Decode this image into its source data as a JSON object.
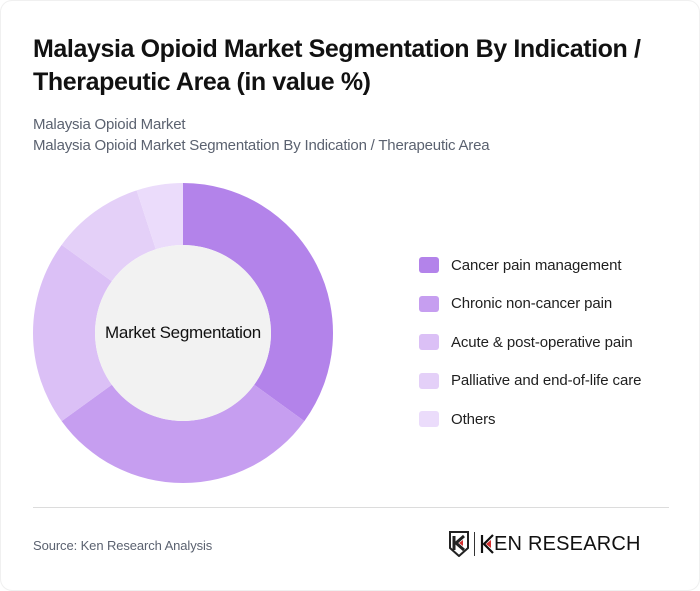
{
  "header": {
    "title": "Malaysia Opioid Market Segmentation By Indication / Therapeutic Area (in value %)",
    "subtitle_line1": "Malaysia Opioid Market",
    "subtitle_line2": "Malaysia Opioid Market Segmentation By Indication / Therapeutic Area"
  },
  "chart": {
    "center_label": "Market Segmentation"
  },
  "legend": {
    "items": [
      {
        "label": "Cancer pain management",
        "color": "#b383ea"
      },
      {
        "label": "Chronic non-cancer pain",
        "color": "#c69ef0"
      },
      {
        "label": "Acute & post-operative pain",
        "color": "#dbc0f6"
      },
      {
        "label": "Palliative and end-of-life care",
        "color": "#e4d0f8"
      },
      {
        "label": "Others",
        "color": "#ebdcfb"
      }
    ]
  },
  "footer": {
    "source": "Source: Ken Research Analysis",
    "logo_text": "KEN RESEARCH",
    "logo_accent": "#d32f2f"
  },
  "chart_data": {
    "type": "pie",
    "title": "Malaysia Opioid Market Segmentation By Indication / Therapeutic Area (in value %)",
    "subtitle": "Malaysia Opioid Market Segmentation By Indication / Therapeutic Area",
    "center_label": "Market Segmentation",
    "donut": true,
    "categories": [
      "Cancer pain management",
      "Chronic non-cancer pain",
      "Acute & post-operative pain",
      "Palliative and end-of-life care",
      "Others"
    ],
    "values": [
      35,
      30,
      20,
      10,
      5
    ],
    "colors": [
      "#b383ea",
      "#c69ef0",
      "#dbc0f6",
      "#e4d0f8",
      "#ebdcfb"
    ],
    "legend_position": "right",
    "unit": "%"
  }
}
